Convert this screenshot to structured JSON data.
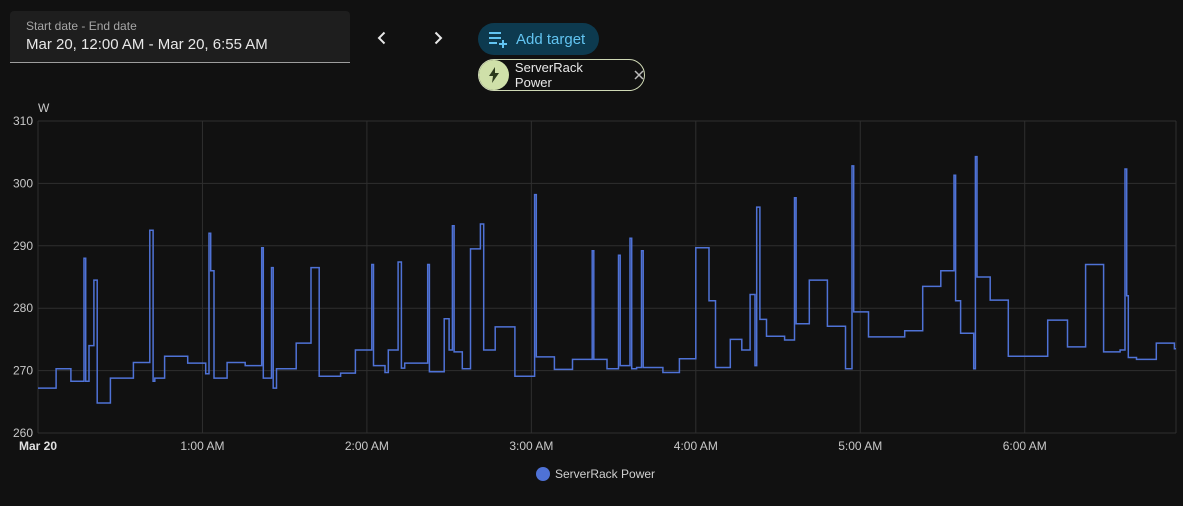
{
  "date_picker": {
    "label": "Start date - End date",
    "value": "Mar 20, 12:00 AM - Mar 20, 6:55 AM"
  },
  "toolbar": {
    "add_target_label": "Add target"
  },
  "target_chip": {
    "label": "ServerRack Power",
    "icon": "lightning-bolt-icon"
  },
  "colors": {
    "series": "#4f72d6",
    "accent": "#62c4f1"
  },
  "chart_data": {
    "type": "line",
    "step": true,
    "ylabel": "W",
    "ylim": [
      260,
      310
    ],
    "y_ticks": [
      "310",
      "300",
      "290",
      "280",
      "270",
      "260"
    ],
    "xlim_hours": [
      0,
      6.92
    ],
    "x_ticks": [
      {
        "h": 0,
        "label": "Mar 20"
      },
      {
        "h": 1,
        "label": "1:00 AM"
      },
      {
        "h": 2,
        "label": "2:00 AM"
      },
      {
        "h": 3,
        "label": "3:00 AM"
      },
      {
        "h": 4,
        "label": "4:00 AM"
      },
      {
        "h": 5,
        "label": "5:00 AM"
      },
      {
        "h": 6,
        "label": "6:00 AM"
      }
    ],
    "grid": true,
    "legend": "bottom-center",
    "series": [
      {
        "name": "ServerRack Power",
        "x": [
          0,
          0.11,
          0.2,
          0.28,
          0.29,
          0.31,
          0.34,
          0.36,
          0.44,
          0.45,
          0.47,
          0.58,
          0.68,
          0.7,
          0.71,
          0.77,
          0.91,
          1.02,
          1.04,
          1.05,
          1.07,
          1.15,
          1.26,
          1.36,
          1.37,
          1.38,
          1.42,
          1.43,
          1.45,
          1.57,
          1.66,
          1.71,
          1.72,
          1.84,
          1.93,
          2.03,
          2.04,
          2.11,
          2.13,
          2.19,
          2.21,
          2.23,
          2.24,
          2.26,
          2.37,
          2.38,
          2.4,
          2.47,
          2.5,
          2.52,
          2.53,
          2.58,
          2.63,
          2.69,
          2.71,
          2.72,
          2.78,
          2.9,
          3.02,
          3.03,
          3.04,
          3.14,
          3.25,
          3.37,
          3.38,
          3.46,
          3.53,
          3.54,
          3.56,
          3.6,
          3.61,
          3.64,
          3.67,
          3.68,
          3.69,
          3.8,
          3.9,
          4.0,
          4.08,
          4.12,
          4.21,
          4.28,
          4.33,
          4.36,
          4.37,
          4.39,
          4.43,
          4.54,
          4.6,
          4.61,
          4.62,
          4.69,
          4.8,
          4.91,
          4.95,
          4.96,
          5.05,
          5.27,
          5.38,
          5.49,
          5.57,
          5.58,
          5.61,
          5.69,
          5.7,
          5.71,
          5.79,
          5.9,
          6.14,
          6.26,
          6.37,
          6.48,
          6.58,
          6.61,
          6.62,
          6.63,
          6.68,
          6.8,
          6.91
        ],
        "values": [
          267.2,
          270.3,
          268.3,
          288,
          268.3,
          274,
          284.5,
          264.8,
          268.8,
          268.8,
          268.8,
          271.3,
          292.5,
          268.3,
          268.8,
          272.3,
          271.2,
          269.5,
          292,
          286,
          268.8,
          271.3,
          270.8,
          289.7,
          268.8,
          268.8,
          286.5,
          267.2,
          270.3,
          274.4,
          286.5,
          269.1,
          269.1,
          269.6,
          273.3,
          287,
          270.8,
          269.7,
          273.3,
          287.4,
          270.4,
          271.2,
          271.2,
          271.2,
          287,
          269.8,
          269.8,
          278.3,
          273.3,
          293.2,
          273,
          270.3,
          289.5,
          293.5,
          273.3,
          273.3,
          277,
          269.1,
          298.2,
          272.2,
          272.2,
          270.2,
          271.8,
          289.2,
          271.8,
          270.3,
          288.5,
          270.8,
          270.8,
          291.2,
          270.3,
          270.5,
          289.2,
          270.5,
          270.5,
          269.7,
          271.9,
          289.7,
          281.2,
          270.5,
          275,
          273.3,
          282.2,
          270.8,
          296.2,
          278.2,
          275.5,
          274.9,
          297.7,
          277.5,
          277.5,
          284.5,
          277.1,
          270.3,
          302.8,
          279.4,
          275.4,
          276.4,
          283.5,
          286,
          301.3,
          281.2,
          276,
          270.3,
          304.3,
          285,
          281.3,
          272.3,
          278.1,
          273.8,
          287,
          273,
          273.3,
          302.3,
          282,
          272.1,
          271.8,
          274.4,
          273.5
        ]
      }
    ]
  }
}
